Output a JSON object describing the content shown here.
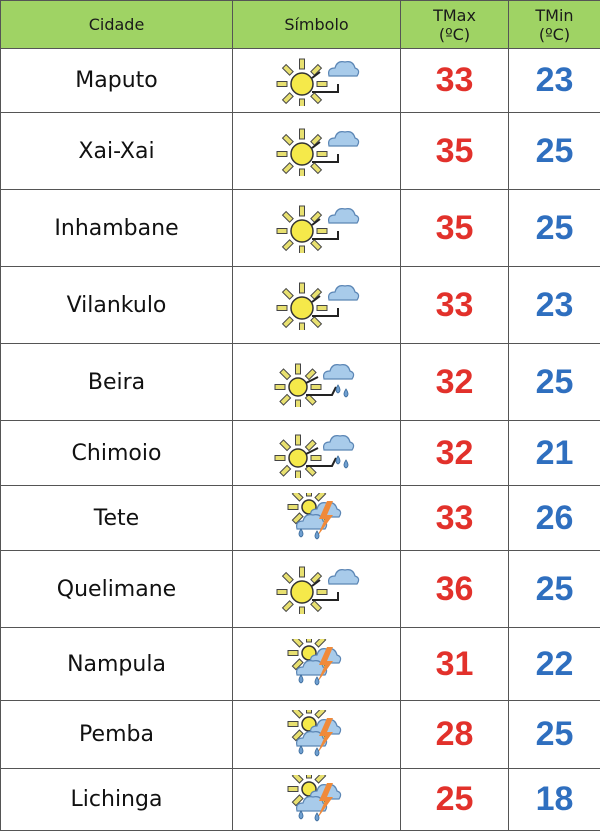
{
  "header": {
    "city": "Cidade",
    "symbol": "Símbolo",
    "tmax": "TMax",
    "tmax_unit": "(ºC)",
    "tmin": "TMin",
    "tmin_unit": "(ºC)"
  },
  "colors": {
    "header_bg": "#9fd364",
    "tmax": "#e2312b",
    "tmin": "#2f6fbf"
  },
  "rows": [
    {
      "city": "Maputo",
      "icon": "sun-cloud-icon",
      "tmax": "33",
      "tmin": "23"
    },
    {
      "city": "Xai-Xai",
      "icon": "sun-cloud-icon",
      "tmax": "35",
      "tmin": "25"
    },
    {
      "city": "Inhambane",
      "icon": "sun-cloud-icon",
      "tmax": "35",
      "tmin": "25"
    },
    {
      "city": "Vilankulo",
      "icon": "sun-cloud-icon",
      "tmax": "33",
      "tmin": "23"
    },
    {
      "city": "Beira",
      "icon": "sun-cloud-rain-icon",
      "tmax": "32",
      "tmin": "25"
    },
    {
      "city": "Chimoio",
      "icon": "sun-cloud-rain-icon",
      "tmax": "32",
      "tmin": "21"
    },
    {
      "city": "Tete",
      "icon": "thunderstorm-icon",
      "tmax": "33",
      "tmin": "26"
    },
    {
      "city": "Quelimane",
      "icon": "sun-cloud-icon",
      "tmax": "36",
      "tmin": "25"
    },
    {
      "city": "Nampula",
      "icon": "thunderstorm-icon",
      "tmax": "31",
      "tmin": "22"
    },
    {
      "city": "Pemba",
      "icon": "thunderstorm-icon",
      "tmax": "28",
      "tmin": "25"
    },
    {
      "city": "Lichinga",
      "icon": "thunderstorm-icon",
      "tmax": "25",
      "tmin": "18"
    }
  ]
}
